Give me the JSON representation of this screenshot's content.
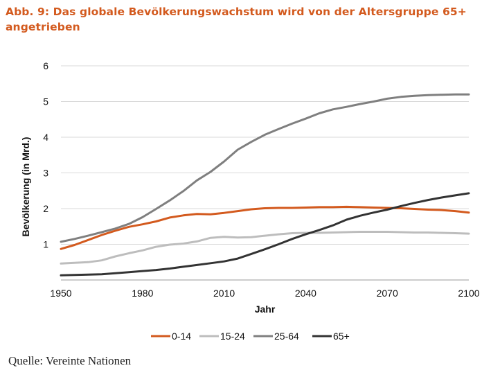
{
  "title": "Abb. 9: Das globale Bevölkerungswachstum wird von der Altersgruppe 65+ angetrieben",
  "source": "Quelle: Vereinte Nationen",
  "chart_data": {
    "type": "line",
    "xlabel": "Jahr",
    "ylabel": "Bevölkerung (in Mrd.)",
    "xlim": [
      1950,
      2100
    ],
    "ylim": [
      0,
      6
    ],
    "x_ticks": [
      1950,
      1980,
      2010,
      2040,
      2070,
      2100
    ],
    "y_ticks": [
      1,
      2,
      3,
      4,
      5,
      6
    ],
    "grid": "horizontal",
    "legend_position": "bottom",
    "x": [
      1950,
      1955,
      1960,
      1965,
      1970,
      1975,
      1980,
      1985,
      1990,
      1995,
      2000,
      2005,
      2010,
      2015,
      2020,
      2025,
      2030,
      2035,
      2040,
      2045,
      2050,
      2055,
      2060,
      2065,
      2070,
      2075,
      2080,
      2085,
      2090,
      2095,
      2100
    ],
    "series": [
      {
        "name": "0-14",
        "color": "#D35A1E",
        "values": [
          0.87,
          0.98,
          1.12,
          1.26,
          1.38,
          1.49,
          1.56,
          1.64,
          1.75,
          1.81,
          1.85,
          1.84,
          1.88,
          1.93,
          1.98,
          2.01,
          2.02,
          2.02,
          2.03,
          2.04,
          2.04,
          2.05,
          2.04,
          2.03,
          2.02,
          2.01,
          1.99,
          1.97,
          1.96,
          1.93,
          1.89
        ]
      },
      {
        "name": "15-24",
        "color": "#BDBDBD",
        "values": [
          0.46,
          0.48,
          0.5,
          0.55,
          0.66,
          0.75,
          0.83,
          0.93,
          0.99,
          1.02,
          1.08,
          1.18,
          1.21,
          1.19,
          1.2,
          1.24,
          1.28,
          1.31,
          1.32,
          1.32,
          1.33,
          1.34,
          1.35,
          1.35,
          1.35,
          1.34,
          1.33,
          1.33,
          1.32,
          1.31,
          1.3
        ]
      },
      {
        "name": "25-64",
        "color": "#7F7F7F",
        "values": [
          1.07,
          1.15,
          1.24,
          1.34,
          1.44,
          1.57,
          1.76,
          1.99,
          2.23,
          2.49,
          2.79,
          3.03,
          3.32,
          3.65,
          3.87,
          4.07,
          4.23,
          4.38,
          4.52,
          4.67,
          4.78,
          4.85,
          4.93,
          5.0,
          5.08,
          5.13,
          5.16,
          5.18,
          5.19,
          5.2,
          5.2
        ]
      },
      {
        "name": "65+",
        "color": "#333333",
        "values": [
          0.13,
          0.14,
          0.15,
          0.16,
          0.19,
          0.22,
          0.25,
          0.28,
          0.32,
          0.37,
          0.42,
          0.47,
          0.52,
          0.6,
          0.73,
          0.86,
          1.0,
          1.15,
          1.28,
          1.4,
          1.53,
          1.69,
          1.8,
          1.89,
          1.97,
          2.07,
          2.16,
          2.24,
          2.31,
          2.37,
          2.43
        ]
      }
    ]
  }
}
